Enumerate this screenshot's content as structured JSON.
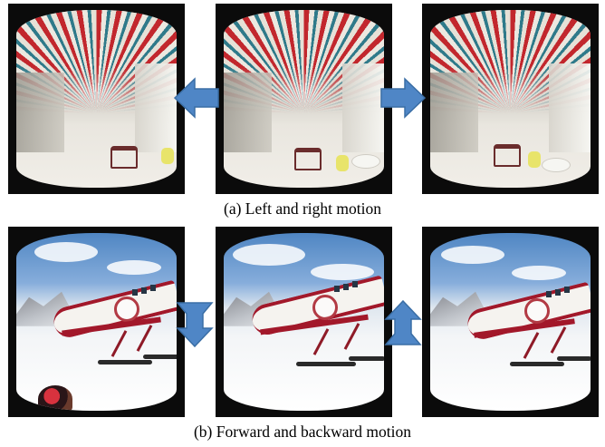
{
  "figure": {
    "row_a": {
      "caption": "(a)  Left and right motion",
      "panels": [
        "left-view",
        "center-view",
        "right-view"
      ],
      "arrows": [
        "left",
        "right"
      ]
    },
    "row_b": {
      "caption": "(b)  Forward and backward motion",
      "panels": [
        "left-view",
        "center-view",
        "right-view"
      ],
      "arrows": [
        "down",
        "up"
      ]
    },
    "colors": {
      "arrow_fill": "#4f86c6",
      "arrow_stroke": "#3a6ea5",
      "panel_border": "#0b0b0b"
    },
    "icons": [
      "arrow-left-icon",
      "arrow-right-icon",
      "arrow-down-icon",
      "arrow-up-icon"
    ]
  }
}
